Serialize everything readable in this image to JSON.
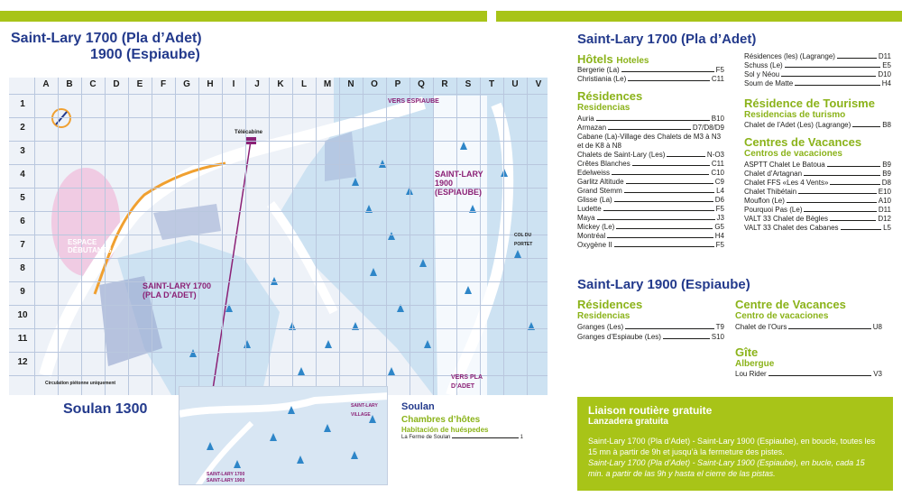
{
  "colors": {
    "accent_green": "#a8c418",
    "title_blue": "#233a8c",
    "heading_green": "#8bb31a",
    "map_purple": "#8b2176",
    "lift_red": "#c8102e",
    "route_orange": "#f0a030"
  },
  "map": {
    "title_line1": "Saint-Lary 1700 (Pla d’Adet)",
    "title_line2": "1900 (Espiaube)",
    "soulan_title": "Soulan 1300",
    "columns": [
      "A",
      "B",
      "C",
      "D",
      "E",
      "F",
      "G",
      "H",
      "I",
      "J",
      "K",
      "L",
      "M",
      "N",
      "O",
      "P",
      "Q",
      "R",
      "S",
      "T",
      "U",
      "V"
    ],
    "rows": [
      "1",
      "2",
      "3",
      "4",
      "5",
      "6",
      "7",
      "8",
      "9",
      "10",
      "11",
      "12"
    ],
    "labels": {
      "espace_debutants": "ESPACE DÉBUTANTS",
      "saint_lary_1700": "SAINT-LARY 1700 (PLA D’ADET)",
      "saint_lary_1900": "SAINT-LARY 1900 (ESPIAUBE)",
      "vers_espiaube": "VERS ESPIAUBE",
      "vers_pla_dadet": "VERS PLA D’ADET",
      "telecabine": "Télécabine",
      "circulation": "Circulation piétonne uniquement",
      "col_du_portet": "COL DU PORTET",
      "saint_lary_village": "SAINT-LARY VILLAGE",
      "saint_lary_1700_small": "SAINT-LARY 1700",
      "saint_lary_1900_small": "SAINT-LARY 1900"
    },
    "soulan_inset": {
      "heading": "Soulan",
      "chambres": "Chambres d’hôtes",
      "chambres_es": "Habitación de huéspedes",
      "entry": {
        "name": "La Ferme de Soulan",
        "grid": "1"
      }
    }
  },
  "section_1700": {
    "title": "Saint-Lary 1700 (Pla d’Adet)",
    "hotels": {
      "heading": "Hôtels",
      "heading_es": "Hoteles",
      "items": [
        {
          "name": "Bergerie (La)",
          "grid": "F5"
        },
        {
          "name": "Christiania (Le)",
          "grid": "C11"
        }
      ]
    },
    "residences": {
      "heading": "Résidences",
      "heading_es": "Residencias",
      "items": [
        {
          "name": "Auria",
          "grid": "B10"
        },
        {
          "name": "Armazan",
          "grid": "D7/D8/D9"
        },
        {
          "name": "Cabane (La)-Village des Chalets de M3 à N3",
          "grid": ""
        },
        {
          "name": "et de K8 à N8",
          "grid": ""
        },
        {
          "name": "Chalets de Saint-Lary (Les)",
          "grid": "N-O3"
        },
        {
          "name": "Crêtes Blanches",
          "grid": "C11"
        },
        {
          "name": "Edelweiss",
          "grid": "C10"
        },
        {
          "name": "Garlitz Altitude",
          "grid": "C9"
        },
        {
          "name": "Grand Stemm",
          "grid": "L4"
        },
        {
          "name": "Glisse (La)",
          "grid": "D6"
        },
        {
          "name": "Ludette",
          "grid": "F5"
        },
        {
          "name": "Maya",
          "grid": "J3"
        },
        {
          "name": "Mickey (Le)",
          "grid": "G5"
        },
        {
          "name": "Montréal",
          "grid": "H4"
        },
        {
          "name": "Oxygène II",
          "grid": "F5"
        }
      ],
      "items_col2": [
        {
          "name": "Résidences (les) (Lagrange)",
          "grid": "D11"
        },
        {
          "name": "Schuss (Le)",
          "grid": "E5"
        },
        {
          "name": "Sol y Néou",
          "grid": "D10"
        },
        {
          "name": "Soum de Matte",
          "grid": "H4"
        }
      ]
    },
    "residence_tourisme": {
      "heading": "Résidence de Tourisme",
      "heading_es": "Residencias de turismo",
      "items": [
        {
          "name": "Chalet de l’Adet (Les) (Lagrange)",
          "grid": "B8"
        }
      ]
    },
    "centres": {
      "heading": "Centres de Vacances",
      "heading_es": "Centros de vacaciones",
      "items": [
        {
          "name": "ASPTT Chalet Le Batoua",
          "grid": "B9"
        },
        {
          "name": "Chalet d’Artagnan",
          "grid": "B9"
        },
        {
          "name": "Chalet FFS «Les 4 Vents»",
          "grid": "D8"
        },
        {
          "name": "Chalet Thibétain",
          "grid": "E10"
        },
        {
          "name": "Mouflon (Le)",
          "grid": "A10"
        },
        {
          "name": "Pourquoi Pas (Le)",
          "grid": "D11"
        },
        {
          "name": "VALT 33 Chalet de Bègles",
          "grid": "D12"
        },
        {
          "name": "VALT 33 Chalet des Cabanes",
          "grid": "L5"
        }
      ]
    }
  },
  "section_1900": {
    "title": "Saint-Lary 1900 (Espiaube)",
    "residences": {
      "heading": "Résidences",
      "heading_es": "Residencias",
      "items": [
        {
          "name": "Granges (Les)",
          "grid": "T9"
        },
        {
          "name": "Granges d’Espiaube (Les)",
          "grid": "S10"
        }
      ]
    },
    "centre": {
      "heading": "Centre de Vacances",
      "heading_es": "Centro de vacaciones",
      "items": [
        {
          "name": "Chalet de l’Ours",
          "grid": "U8"
        }
      ]
    },
    "gite": {
      "heading": "Gîte",
      "heading_es": "Albergue",
      "items": [
        {
          "name": "Lou Rider",
          "grid": "V3"
        }
      ]
    }
  },
  "liaison": {
    "heading": "Liaison routière gratuite",
    "heading_es": "Lanzadera gratuita",
    "text_fr": "Saint-Lary 1700 (Pla d’Adet) - Saint-Lary 1900 (Espiaube), en boucle, toutes les 15 mn à partir de 9h et jusqu’à la fermeture des pistes.",
    "text_es": "Saint-Lary 1700 (Pla d’Adet) - Saint-Lary 1900 (Espiaube), en bucle, cada 15 min. a partir de las 9h y hasta el cierre de las pistas."
  }
}
